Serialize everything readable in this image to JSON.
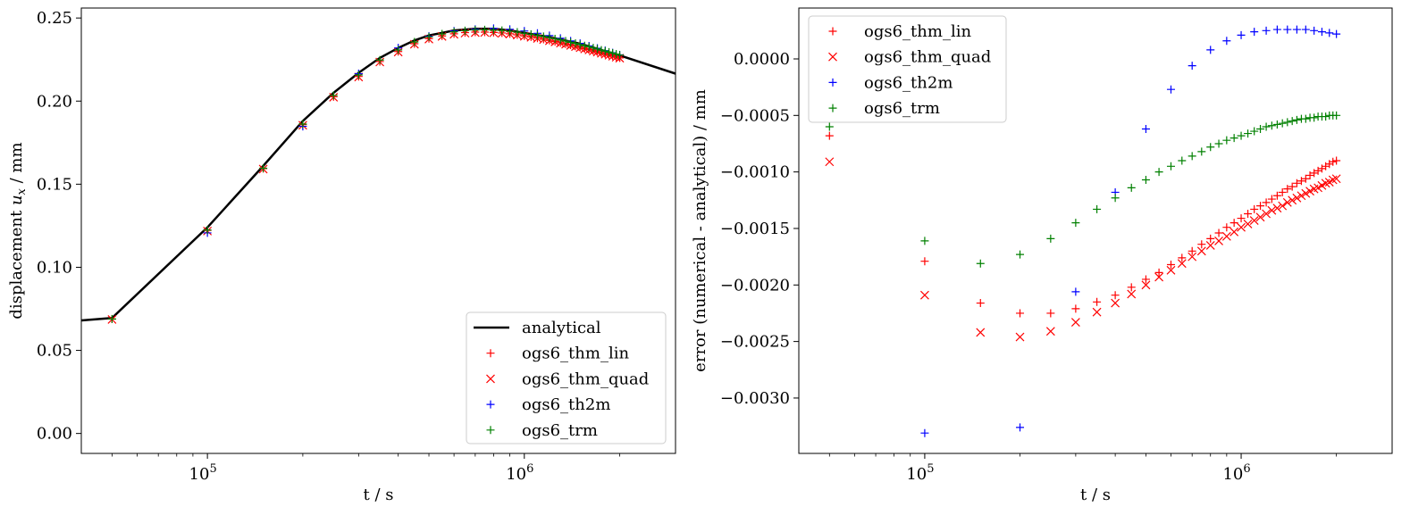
{
  "chart_data": [
    {
      "type": "line",
      "xlabel": "t / s",
      "ylabel_prefix": "displacement ",
      "ylabel_var": "u",
      "ylabel_sub": "x",
      "ylabel_suffix": " / mm",
      "xscale": "log",
      "xlim": [
        40000,
        3000000
      ],
      "ylim": [
        -0.012,
        0.256
      ],
      "xticks": [
        {
          "value": 100000,
          "base": "10",
          "exp": "5"
        },
        {
          "value": 1000000,
          "base": "10",
          "exp": "6"
        }
      ],
      "yticks": [
        {
          "value": 0.0,
          "label": "0.00"
        },
        {
          "value": 0.05,
          "label": "0.05"
        },
        {
          "value": 0.1,
          "label": "0.10"
        },
        {
          "value": 0.15,
          "label": "0.15"
        },
        {
          "value": 0.2,
          "label": "0.20"
        },
        {
          "value": 0.25,
          "label": "0.25"
        }
      ],
      "legend_position": "lower right",
      "series": [
        {
          "name": "analytical",
          "style": "line",
          "color": "#000000",
          "x": [
            40000,
            50000,
            100000,
            150000,
            200000,
            250000,
            300000,
            350000,
            400000,
            450000,
            500000,
            550000,
            600000,
            700000,
            800000,
            900000,
            1000000,
            1200000,
            1500000,
            2000000,
            3000000
          ],
          "y": [
            0.068,
            0.0695,
            0.124,
            0.161,
            0.188,
            0.205,
            0.217,
            0.226,
            0.232,
            0.2365,
            0.2395,
            0.241,
            0.2425,
            0.2435,
            0.2435,
            0.2425,
            0.241,
            0.2385,
            0.2345,
            0.2275,
            0.2165
          ]
        },
        {
          "name": "ogs6_thm_lin",
          "style": "plus",
          "color": "#ff0000",
          "x": [
            50000,
            100000,
            150000,
            200000,
            250000,
            300000,
            350000,
            400000,
            450000,
            500000,
            550000,
            600000,
            650000,
            700000,
            750000,
            800000,
            850000,
            900000,
            950000,
            1000000,
            1050000,
            1100000,
            1150000,
            1200000,
            1250000,
            1300000,
            1350000,
            1400000,
            1450000,
            1500000,
            1550000,
            1600000,
            1650000,
            1700000,
            1750000,
            1800000,
            1850000,
            1900000,
            1950000,
            2000000
          ],
          "y": [
            0.0688,
            0.1222,
            0.1594,
            0.1858,
            0.2026,
            0.2148,
            0.2238,
            0.2298,
            0.2345,
            0.2376,
            0.2392,
            0.2405,
            0.2412,
            0.2415,
            0.2415,
            0.2413,
            0.241,
            0.2405,
            0.2399,
            0.2392,
            0.2386,
            0.2379,
            0.2372,
            0.2365,
            0.2358,
            0.2351,
            0.2344,
            0.2337,
            0.233,
            0.2323,
            0.2316,
            0.231,
            0.2303,
            0.2297,
            0.229,
            0.2284,
            0.2278,
            0.2272,
            0.2266,
            0.226
          ]
        },
        {
          "name": "ogs6_thm_quad",
          "style": "cross",
          "color": "#ff0000",
          "x": [
            50000,
            100000,
            150000,
            200000,
            250000,
            300000,
            350000,
            400000,
            450000,
            500000,
            550000,
            600000,
            650000,
            700000,
            750000,
            800000,
            850000,
            900000,
            950000,
            1000000,
            1050000,
            1100000,
            1150000,
            1200000,
            1250000,
            1300000,
            1350000,
            1400000,
            1450000,
            1500000,
            1550000,
            1600000,
            1650000,
            1700000,
            1750000,
            1800000,
            1850000,
            1900000,
            1950000,
            2000000
          ],
          "y": [
            0.0686,
            0.1218,
            0.1591,
            0.1855,
            0.2023,
            0.2145,
            0.2235,
            0.2295,
            0.2342,
            0.2373,
            0.2389,
            0.2402,
            0.2409,
            0.2412,
            0.2413,
            0.2411,
            0.2408,
            0.2403,
            0.2397,
            0.239,
            0.2384,
            0.2377,
            0.237,
            0.2363,
            0.2356,
            0.2349,
            0.2342,
            0.2335,
            0.2328,
            0.2321,
            0.2314,
            0.2308,
            0.2301,
            0.2295,
            0.2288,
            0.2282,
            0.2276,
            0.227,
            0.2264,
            0.2258
          ]
        },
        {
          "name": "ogs6_th2m",
          "style": "plus",
          "color": "#0000ff",
          "x": [
            100000,
            200000,
            300000,
            400000,
            500000,
            600000,
            700000,
            800000,
            900000,
            1000000,
            1100000,
            1200000,
            1300000,
            1400000,
            1500000,
            1600000,
            1700000,
            1800000,
            1900000,
            2000000
          ],
          "y": [
            0.1207,
            0.1848,
            0.2165,
            0.232,
            0.239,
            0.2422,
            0.2432,
            0.2437,
            0.2432,
            0.2422,
            0.2408,
            0.2394,
            0.2378,
            0.2362,
            0.2347,
            0.2332,
            0.2318,
            0.2304,
            0.2291,
            0.2278
          ]
        },
        {
          "name": "ogs6_trm",
          "style": "plus",
          "color": "#008000",
          "x": [
            50000,
            100000,
            150000,
            200000,
            250000,
            300000,
            350000,
            400000,
            450000,
            500000,
            550000,
            600000,
            650000,
            700000,
            750000,
            800000,
            850000,
            900000,
            950000,
            1000000,
            1050000,
            1100000,
            1150000,
            1200000,
            1250000,
            1300000,
            1350000,
            1400000,
            1450000,
            1500000,
            1550000,
            1600000,
            1650000,
            1700000,
            1750000,
            1800000,
            1850000,
            1900000,
            1950000,
            2000000
          ],
          "y": [
            0.0689,
            0.1224,
            0.1596,
            0.1862,
            0.2034,
            0.2157,
            0.2247,
            0.2308,
            0.2356,
            0.2387,
            0.2404,
            0.2417,
            0.2424,
            0.2428,
            0.2429,
            0.2427,
            0.2425,
            0.242,
            0.2415,
            0.2408,
            0.2402,
            0.2395,
            0.2389,
            0.2382,
            0.2375,
            0.2368,
            0.2361,
            0.2354,
            0.2347,
            0.234,
            0.2333,
            0.2327,
            0.232,
            0.2314,
            0.2307,
            0.2301,
            0.2295,
            0.2289,
            0.2283,
            0.2277
          ]
        }
      ]
    },
    {
      "type": "scatter",
      "xlabel": "t / s",
      "ylabel": "error (numerical - analytical) / mm",
      "xscale": "log",
      "xlim": [
        40000,
        3000000
      ],
      "ylim": [
        -0.00349,
        0.00045
      ],
      "xticks": [
        {
          "value": 100000,
          "base": "10",
          "exp": "5"
        },
        {
          "value": 1000000,
          "base": "10",
          "exp": "6"
        }
      ],
      "yticks": [
        {
          "value": -0.003,
          "label": "−0.0030"
        },
        {
          "value": -0.0025,
          "label": "−0.0025"
        },
        {
          "value": -0.002,
          "label": "−0.0020"
        },
        {
          "value": -0.0015,
          "label": "−0.0015"
        },
        {
          "value": -0.001,
          "label": "−0.0010"
        },
        {
          "value": -0.0005,
          "label": "−0.0005"
        },
        {
          "value": 0.0,
          "label": "0.0000"
        }
      ],
      "legend_position": "upper left",
      "series": [
        {
          "name": "ogs6_thm_lin",
          "style": "plus",
          "color": "#ff0000",
          "x": [
            50000,
            100000,
            150000,
            200000,
            250000,
            300000,
            350000,
            400000,
            450000,
            500000,
            550000,
            600000,
            650000,
            700000,
            750000,
            800000,
            850000,
            900000,
            950000,
            1000000,
            1050000,
            1100000,
            1150000,
            1200000,
            1250000,
            1300000,
            1350000,
            1400000,
            1450000,
            1500000,
            1550000,
            1600000,
            1650000,
            1700000,
            1750000,
            1800000,
            1850000,
            1900000,
            1950000,
            2000000
          ],
          "y": [
            -0.00068,
            -0.00179,
            -0.00216,
            -0.00225,
            -0.00225,
            -0.00221,
            -0.00215,
            -0.00209,
            -0.00202,
            -0.00195,
            -0.00189,
            -0.00182,
            -0.00176,
            -0.0017,
            -0.00164,
            -0.00159,
            -0.00154,
            -0.00149,
            -0.00145,
            -0.00141,
            -0.00137,
            -0.00133,
            -0.0013,
            -0.00127,
            -0.00124,
            -0.00121,
            -0.00118,
            -0.00115,
            -0.00113,
            -0.0011,
            -0.00108,
            -0.00106,
            -0.00103,
            -0.00101,
            -0.00099,
            -0.00097,
            -0.00095,
            -0.00093,
            -0.00091,
            -0.0009
          ]
        },
        {
          "name": "ogs6_thm_quad",
          "style": "cross",
          "color": "#ff0000",
          "x": [
            50000,
            100000,
            150000,
            200000,
            250000,
            300000,
            350000,
            400000,
            450000,
            500000,
            550000,
            600000,
            650000,
            700000,
            750000,
            800000,
            850000,
            900000,
            950000,
            1000000,
            1050000,
            1100000,
            1150000,
            1200000,
            1250000,
            1300000,
            1350000,
            1400000,
            1450000,
            1500000,
            1550000,
            1600000,
            1650000,
            1700000,
            1750000,
            1800000,
            1850000,
            1900000,
            1950000,
            2000000
          ],
          "y": [
            -0.00091,
            -0.00209,
            -0.00242,
            -0.00246,
            -0.00241,
            -0.00233,
            -0.00224,
            -0.00216,
            -0.00208,
            -0.002,
            -0.00193,
            -0.00187,
            -0.00181,
            -0.00175,
            -0.0017,
            -0.00165,
            -0.00161,
            -0.00157,
            -0.00153,
            -0.00149,
            -0.00146,
            -0.00143,
            -0.0014,
            -0.00137,
            -0.00134,
            -0.00132,
            -0.0013,
            -0.00127,
            -0.00125,
            -0.00123,
            -0.00121,
            -0.00119,
            -0.00117,
            -0.00115,
            -0.00114,
            -0.00112,
            -0.0011,
            -0.00109,
            -0.00107,
            -0.00106
          ]
        },
        {
          "name": "ogs6_th2m",
          "style": "plus",
          "color": "#0000ff",
          "x": [
            100000,
            200000,
            300000,
            400000,
            500000,
            600000,
            700000,
            800000,
            900000,
            1000000,
            1100000,
            1200000,
            1300000,
            1400000,
            1500000,
            1600000,
            1700000,
            1800000,
            1900000,
            2000000
          ],
          "y": [
            -0.00331,
            -0.00326,
            -0.00206,
            -0.00118,
            -0.00062,
            -0.00027,
            -6e-05,
            8e-05,
            0.00016,
            0.00021,
            0.00024,
            0.00025,
            0.00026,
            0.00026,
            0.00026,
            0.00026,
            0.00025,
            0.00024,
            0.00023,
            0.00022
          ]
        },
        {
          "name": "ogs6_trm",
          "style": "plus",
          "color": "#008000",
          "x": [
            50000,
            100000,
            150000,
            200000,
            250000,
            300000,
            350000,
            400000,
            450000,
            500000,
            550000,
            600000,
            650000,
            700000,
            750000,
            800000,
            850000,
            900000,
            950000,
            1000000,
            1050000,
            1100000,
            1150000,
            1200000,
            1250000,
            1300000,
            1350000,
            1400000,
            1450000,
            1500000,
            1550000,
            1600000,
            1650000,
            1700000,
            1750000,
            1800000,
            1850000,
            1900000,
            1950000,
            2000000
          ],
          "y": [
            -0.0006,
            -0.00161,
            -0.00181,
            -0.00173,
            -0.00159,
            -0.00145,
            -0.00133,
            -0.00123,
            -0.00114,
            -0.00107,
            -0.001,
            -0.00095,
            -0.0009,
            -0.00086,
            -0.00082,
            -0.00078,
            -0.00075,
            -0.00072,
            -0.0007,
            -0.00068,
            -0.00066,
            -0.00064,
            -0.00062,
            -0.0006,
            -0.00059,
            -0.00058,
            -0.00057,
            -0.00056,
            -0.00055,
            -0.00054,
            -0.00053,
            -0.00053,
            -0.00052,
            -0.00052,
            -0.00051,
            -0.00051,
            -0.00051,
            -0.0005,
            -0.0005,
            -0.0005
          ]
        }
      ]
    }
  ]
}
